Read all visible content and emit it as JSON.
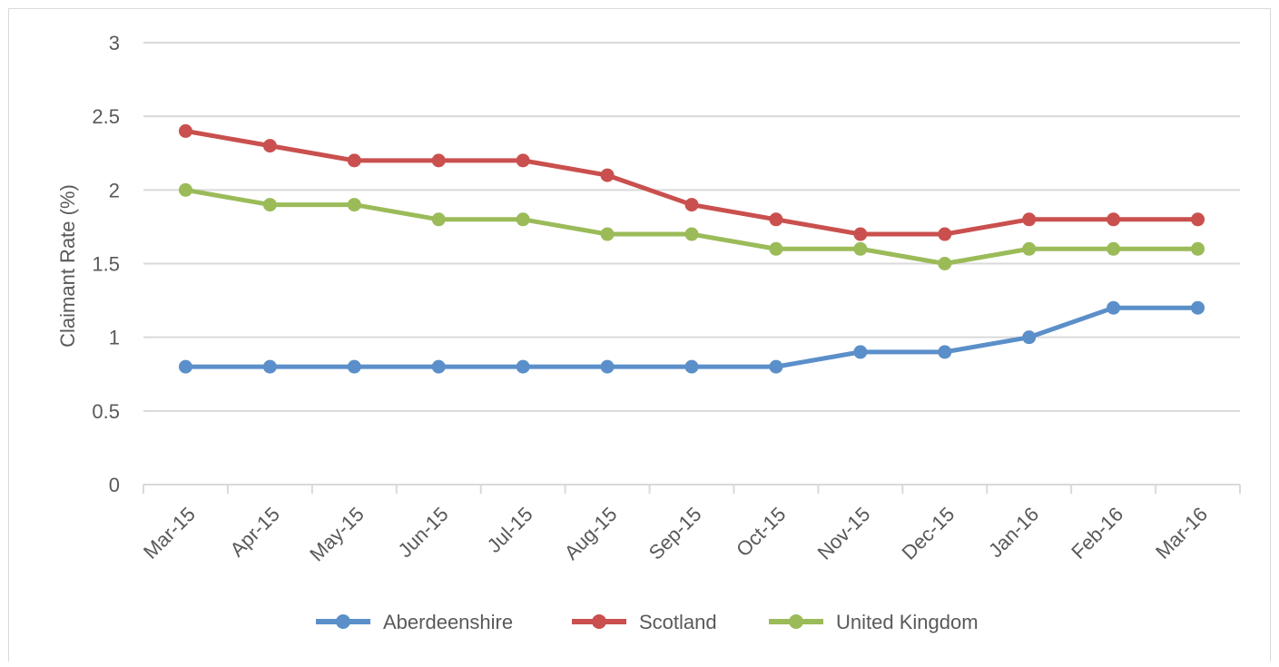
{
  "chart_data": {
    "type": "line",
    "title": "",
    "xlabel": "",
    "ylabel": "Claimant Rate (%)",
    "categories": [
      "Mar-15",
      "Apr-15",
      "May-15",
      "Jun-15",
      "Jul-15",
      "Aug-15",
      "Sep-15",
      "Oct-15",
      "Nov-15",
      "Dec-15",
      "Jan-16",
      "Feb-16",
      "Mar-16"
    ],
    "ylim": [
      0,
      3
    ],
    "yticks": [
      "0",
      "0.5",
      "1",
      "1.5",
      "2",
      "2.5",
      "3"
    ],
    "grid": "horizontal",
    "legend_position": "bottom",
    "series": [
      {
        "name": "Aberdeenshire",
        "color": "#5b8fc9",
        "values": [
          0.8,
          0.8,
          0.8,
          0.8,
          0.8,
          0.8,
          0.8,
          0.8,
          0.9,
          0.9,
          1.0,
          1.2,
          1.2
        ]
      },
      {
        "name": "Scotland",
        "color": "#c9504e",
        "values": [
          2.4,
          2.3,
          2.2,
          2.2,
          2.2,
          2.1,
          1.9,
          1.8,
          1.7,
          1.7,
          1.8,
          1.8,
          1.8
        ]
      },
      {
        "name": "United Kingdom",
        "color": "#9bbb59",
        "values": [
          2.0,
          1.9,
          1.9,
          1.8,
          1.8,
          1.7,
          1.7,
          1.6,
          1.6,
          1.5,
          1.6,
          1.6,
          1.6
        ]
      }
    ]
  }
}
